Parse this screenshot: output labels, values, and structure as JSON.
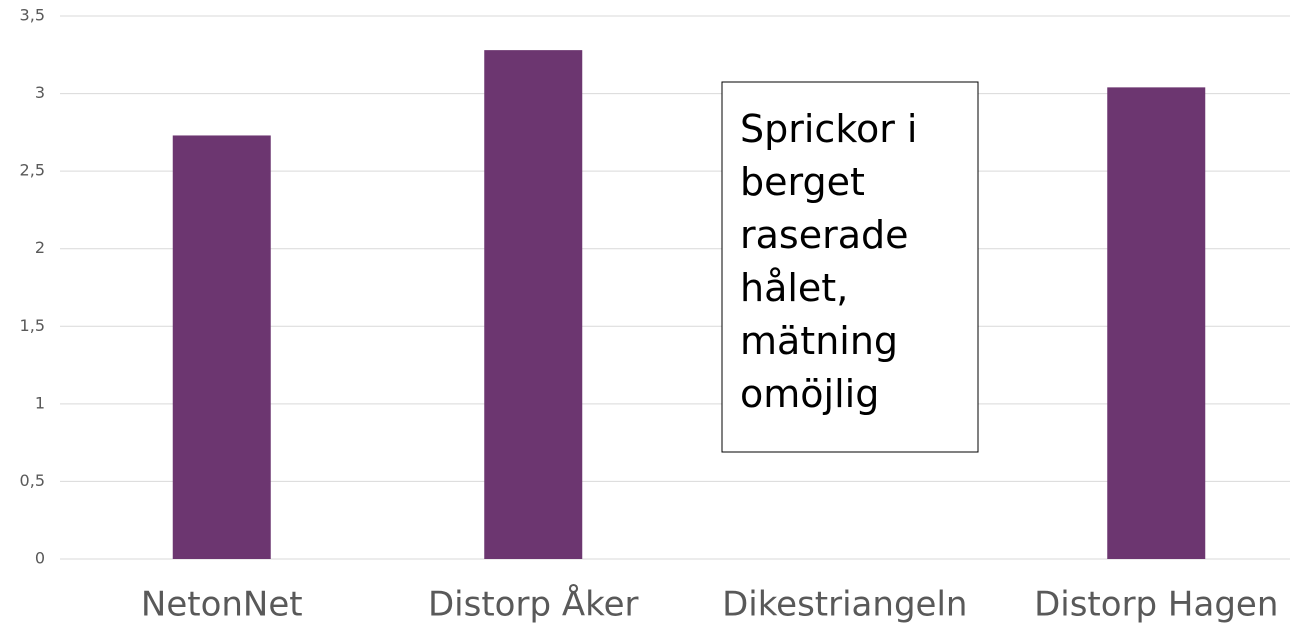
{
  "chart_data": {
    "type": "bar",
    "categories": [
      "NetonNet",
      "Distorp Åker",
      "Dikestriangeln",
      "Distorp Hagen"
    ],
    "values": [
      2.73,
      3.28,
      null,
      3.04
    ],
    "color": "#6c3670",
    "ylim": [
      0,
      3.5
    ],
    "yticks": [
      0,
      {
        "value": 0.5,
        "label": "0,5"
      },
      1,
      {
        "value": 1.5,
        "label": "1,5"
      },
      2,
      {
        "value": 2.5,
        "label": "2,5"
      },
      3,
      {
        "value": 3.5,
        "label": "3,5"
      }
    ],
    "grid": true,
    "annotation": [
      "Sprickor i",
      "berget",
      "raserade",
      "hålet,",
      "mätning",
      "omöjlig"
    ]
  }
}
